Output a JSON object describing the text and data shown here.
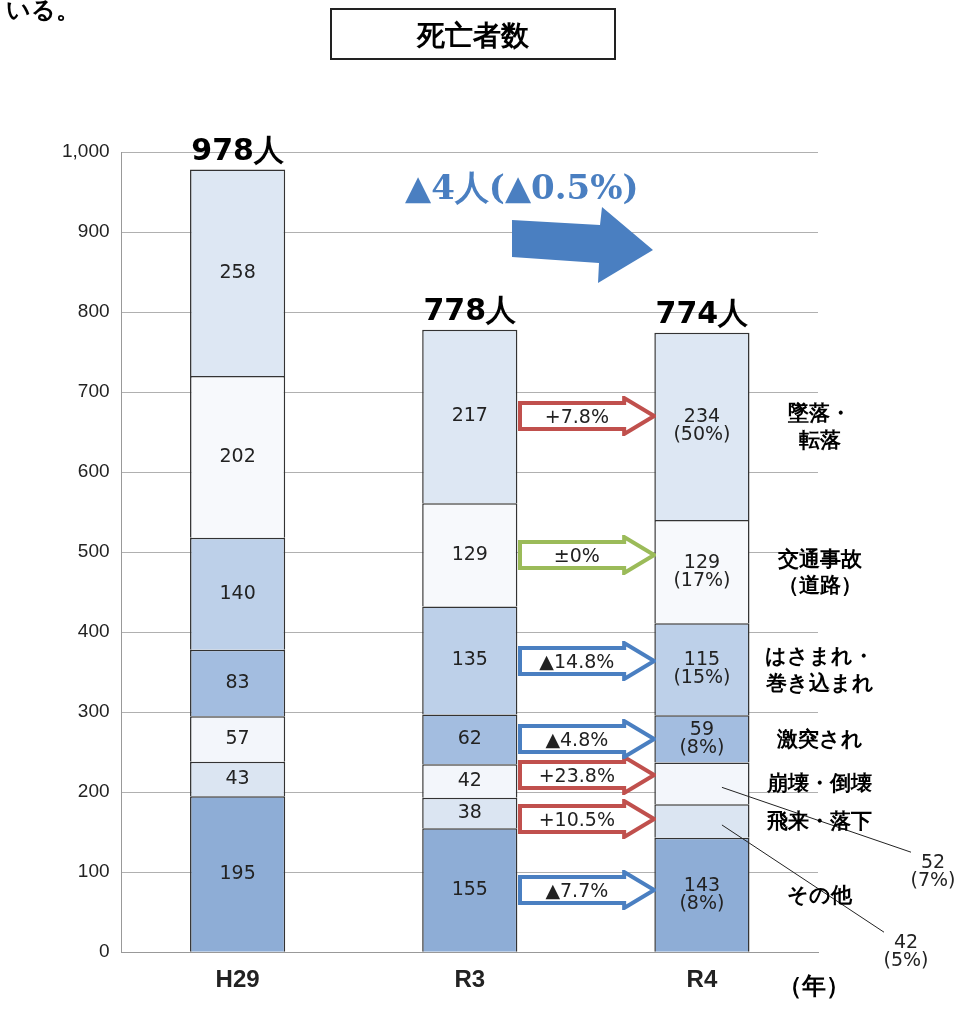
{
  "chart_data": {
    "type": "bar",
    "title": "死亡者数",
    "xlabel": "（年）",
    "categories": [
      "H29",
      "R3",
      "R4"
    ],
    "stacked": true,
    "grid": "y",
    "legend": false,
    "ylim": [
      0,
      1000
    ],
    "yticks": [
      0,
      100,
      200,
      300,
      400,
      500,
      600,
      700,
      800,
      900,
      {
        "value": 1000,
        "label": "1,000"
      }
    ],
    "series": [
      {
        "name": "その他",
        "color": "#8eadd6",
        "values": [
          195,
          155,
          143
        ],
        "value_labels": [
          "195",
          "155",
          "143\n(8%)"
        ]
      },
      {
        "name": "飛来・落下",
        "color": "#dbe5f2",
        "values": [
          43,
          38,
          42
        ],
        "value_labels": [
          "43",
          "38",
          "42\n(5%)"
        ]
      },
      {
        "name": "崩壊・倒壊",
        "color": "#f3f6fb",
        "values": [
          57,
          42,
          52
        ],
        "value_labels": [
          "57",
          "42",
          "52\n(7%)"
        ]
      },
      {
        "name": "激突され",
        "color": "#a3bde0",
        "values": [
          83,
          62,
          59
        ],
        "value_labels": [
          "83",
          "62",
          "59\n(8%)"
        ]
      },
      {
        "name": "はさまれ・巻き込まれ",
        "color": "#bdd0e9",
        "values": [
          140,
          135,
          115
        ],
        "value_labels": [
          "140",
          "135",
          "115\n(15%)"
        ]
      },
      {
        "name": "交通事故（道路）",
        "color": "#f7f9fc",
        "values": [
          202,
          129,
          129
        ],
        "value_labels": [
          "202",
          "129",
          "129\n(17%)"
        ]
      },
      {
        "name": "墜落・転落",
        "color": "#dde7f3",
        "values": [
          258,
          217,
          234
        ],
        "value_labels": [
          "258",
          "217",
          "234\n(50%)"
        ]
      }
    ],
    "totals": [
      "978人",
      "778人",
      "774人"
    ],
    "annotations": [
      "いる。",
      "▲4人(▲0.5%)",
      "▲7.7%",
      "+10.5%",
      "+23.8%",
      "▲4.8%",
      "▲14.8%",
      "±0%",
      "+7.8%"
    ]
  }
}
